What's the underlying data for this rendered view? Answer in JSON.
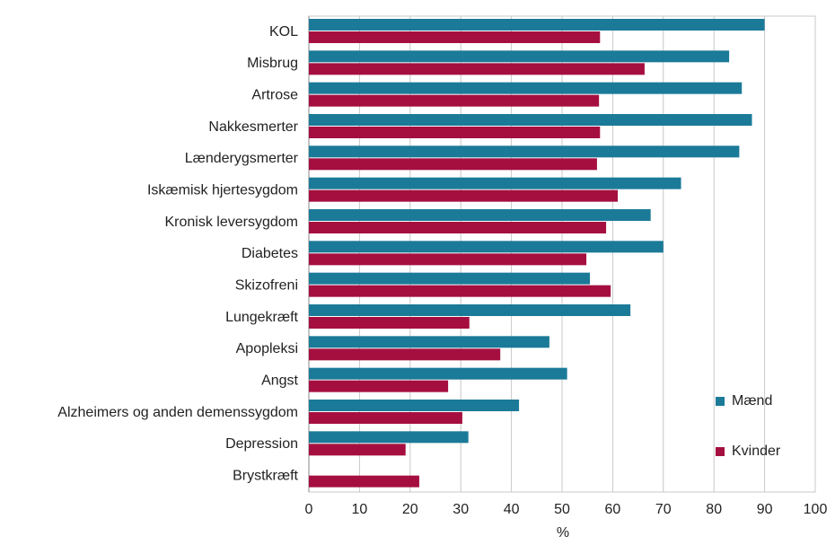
{
  "chart_data": {
    "type": "bar",
    "orientation": "horizontal",
    "categories": [
      "KOL",
      "Misbrug",
      "Artrose",
      "Nakkesmerter",
      "Lænderygsmerter",
      "Iskæmisk hjertesygdom",
      "Kronisk leversygdom",
      "Diabetes",
      "Skizofreni",
      "Lungekræft",
      "Apopleksi",
      "Angst ",
      "Alzheimers og anden demenssygdom",
      "Depression",
      "Brystkræft"
    ],
    "series": [
      {
        "name": "Mænd",
        "color": "#1b7a98",
        "values": [
          90,
          83,
          85.5,
          87.5,
          85,
          73.5,
          67.5,
          70,
          55.5,
          63.5,
          47.5,
          51,
          41.5,
          31.5,
          null
        ]
      },
      {
        "name": "Kvinder",
        "color": "#a50f3f",
        "values": [
          57.5,
          66.3,
          57.3,
          57.5,
          56.9,
          61,
          58.7,
          54.8,
          59.6,
          31.7,
          37.8,
          27.5,
          30.3,
          19.1,
          21.8
        ]
      }
    ],
    "xlabel": "%",
    "xlim": [
      0,
      100
    ],
    "xticks": [
      0,
      10,
      20,
      30,
      40,
      50,
      60,
      70,
      80,
      90,
      100
    ],
    "grid": true,
    "legend": "lower right"
  }
}
